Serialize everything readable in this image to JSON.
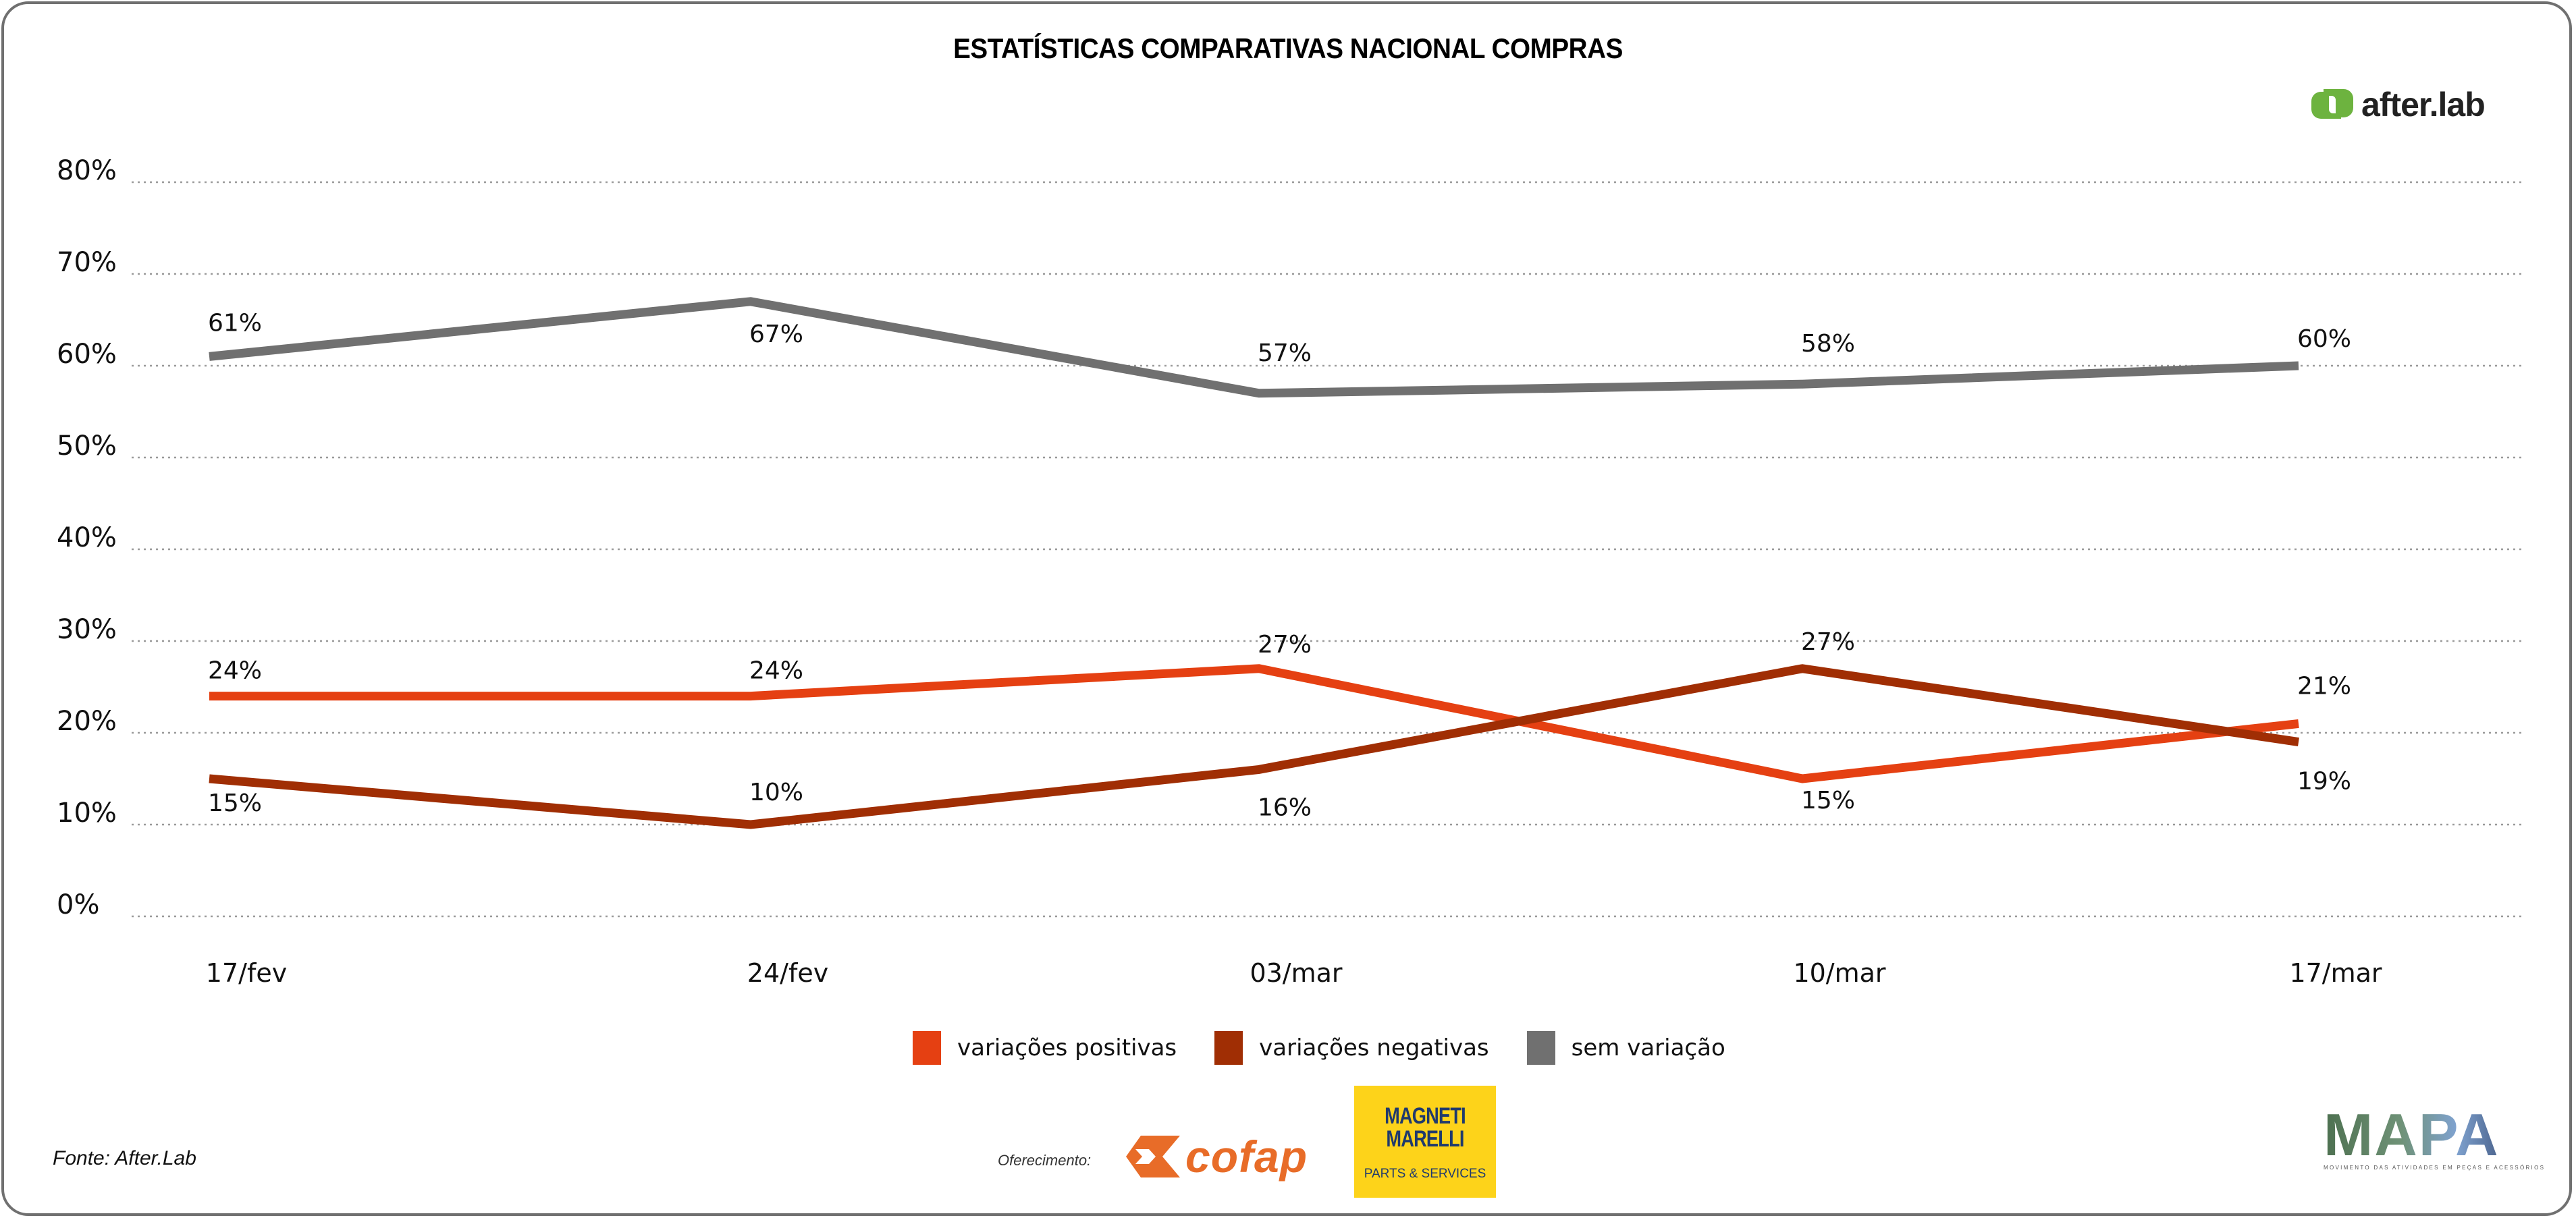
{
  "title": "ESTATÍSTICAS COMPARATIVAS NACIONAL COMPRAS",
  "logos": {
    "afterlab": "after.lab",
    "cofap": "cofap",
    "magneti_marelli_line1": "MAGNETI",
    "magneti_marelli_line2": "MARELLI",
    "magneti_marelli_sub": "PARTS & SERVICES",
    "mapa": "MAPA",
    "mapa_sub": "MOVIMENTO DAS ATIVIDADES EM PEÇAS E ACESSÓRIOS"
  },
  "footer": {
    "source": "Fonte: After.Lab",
    "sponsor_label": "Oferecimento:"
  },
  "chart_data": {
    "type": "line",
    "title": "ESTATÍSTICAS COMPARATIVAS NACIONAL COMPRAS",
    "xlabel": "",
    "ylabel": "",
    "categories": [
      "17/fev",
      "24/fev",
      "03/mar",
      "10/mar",
      "17/mar"
    ],
    "y_ticks": [
      "0%",
      "10%",
      "20%",
      "30%",
      "40%",
      "50%",
      "60%",
      "70%",
      "80%"
    ],
    "ylim": [
      0,
      80
    ],
    "grid": "horizontal dotted",
    "legend_position": "bottom-center",
    "series": [
      {
        "name": "variações positivas",
        "color": "#e54012",
        "values": [
          24,
          24,
          27,
          15,
          21
        ],
        "labels": [
          "24%",
          "24%",
          "27%",
          "15%",
          "21%"
        ]
      },
      {
        "name": "variações negativas",
        "color": "#a02e04",
        "values": [
          15,
          10,
          16,
          27,
          19
        ],
        "labels": [
          "15%",
          "10%",
          "16%",
          "27%",
          "19%"
        ]
      },
      {
        "name": "sem variação",
        "color": "#707070",
        "values": [
          61,
          67,
          57,
          58,
          60
        ],
        "labels": [
          "61%",
          "67%",
          "57%",
          "58%",
          "60%"
        ]
      }
    ]
  }
}
